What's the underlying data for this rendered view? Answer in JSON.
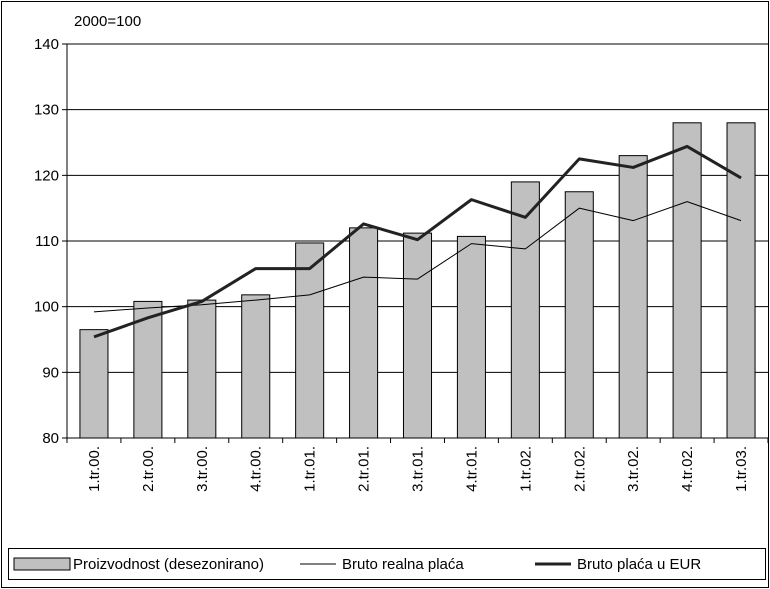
{
  "chart_data": {
    "type": "bar-line",
    "unit_label": "2000=100",
    "categories": [
      "1.tr.00.",
      "2.tr.00.",
      "3.tr.00.",
      "4.tr.00.",
      "1.tr.01.",
      "2.tr.01.",
      "3.tr.01.",
      "4.tr.01.",
      "1.tr.02.",
      "2.tr.02.",
      "3.tr.02.",
      "4.tr.02.",
      "1.tr.03."
    ],
    "series": [
      {
        "name": "Proizvodnost (desezonirano)",
        "type": "bar",
        "color": "#c0c0c0",
        "values": [
          96.5,
          100.8,
          101,
          101.8,
          109.7,
          112,
          111.2,
          110.7,
          119,
          117.5,
          123,
          128,
          128
        ]
      },
      {
        "name": "Bruto realna plaća",
        "type": "line",
        "color": "#000000",
        "stroke_width": 1,
        "values": [
          99.2,
          99.8,
          100.3,
          101,
          101.8,
          104.5,
          104.2,
          109.6,
          108.8,
          115,
          113.1,
          116,
          113.1
        ]
      },
      {
        "name": "Bruto plaća u EUR",
        "type": "line",
        "color": "#222222",
        "stroke_width": 3,
        "values": [
          95.4,
          98.3,
          100.8,
          105.8,
          105.8,
          112.6,
          110.2,
          116.3,
          113.6,
          122.5,
          121.2,
          124.4,
          119.6
        ]
      }
    ],
    "ylim": [
      80,
      140
    ],
    "yticks": [
      80,
      90,
      100,
      110,
      120,
      130,
      140
    ],
    "grid": true,
    "legend": "bottom"
  }
}
